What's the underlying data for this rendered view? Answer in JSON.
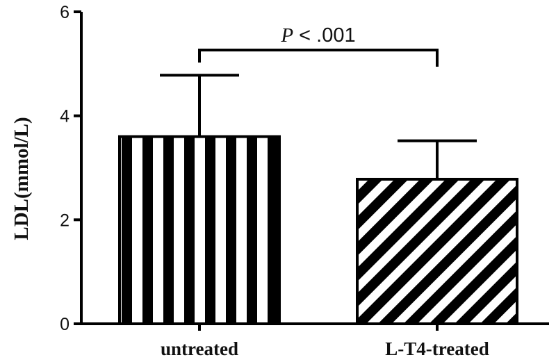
{
  "chart_data": {
    "type": "bar",
    "title": "",
    "xlabel": "",
    "ylabel": "LDL(mmol/L)",
    "ylim": [
      0,
      6
    ],
    "yticks": [
      0,
      2,
      4,
      6
    ],
    "grid": false,
    "categories": [
      "untreated",
      "L-T4-treated"
    ],
    "values": [
      3.6,
      2.78
    ],
    "error_upper": [
      4.78,
      3.52
    ],
    "bar_patterns": [
      "vertical-stripes",
      "diagonal-stripes"
    ],
    "annotation": {
      "p_symbol": "P",
      "text": " < .001",
      "between": [
        "untreated",
        "L-T4-treated"
      ]
    },
    "colors": {
      "ink": "#000000",
      "background": "#ffffff"
    }
  }
}
